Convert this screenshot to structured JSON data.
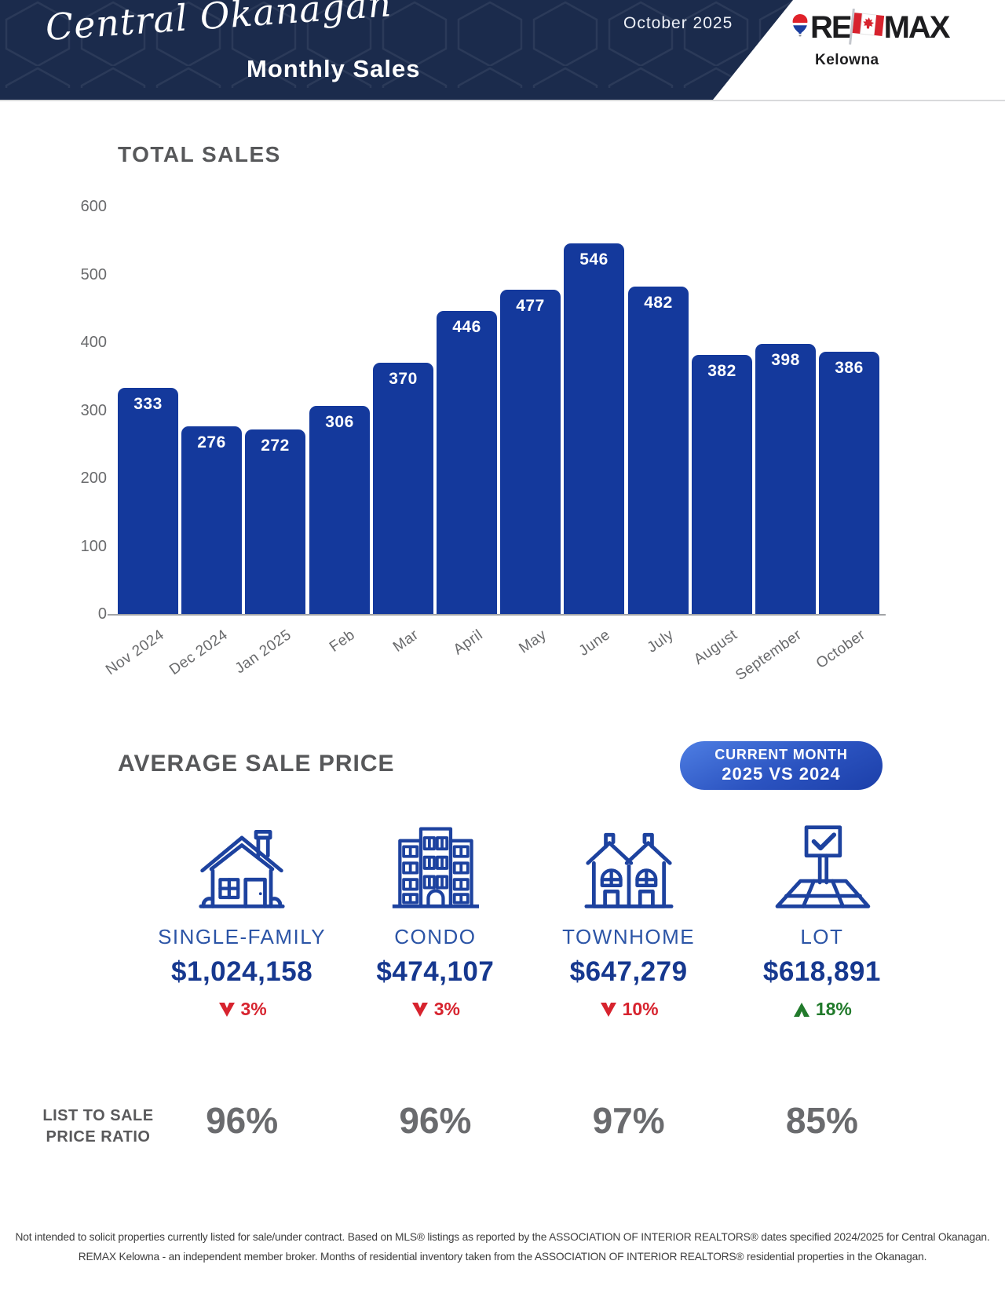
{
  "header": {
    "region": "Central Okanagan",
    "title": "Monthly Sales",
    "date": "October 2025",
    "logo": {
      "brand_left": "RE",
      "brand_right": "MAX",
      "office": "Kelowna"
    }
  },
  "chart_data": {
    "type": "bar",
    "title": "TOTAL SALES",
    "categories": [
      "Nov 2024",
      "Dec 2024",
      "Jan 2025",
      "Feb",
      "Mar",
      "April",
      "May",
      "June",
      "July",
      "August",
      "September",
      "October"
    ],
    "values": [
      333,
      276,
      272,
      306,
      370,
      446,
      477,
      546,
      482,
      382,
      398,
      386
    ],
    "xlabel": "",
    "ylabel": "",
    "ylim": [
      0,
      600
    ],
    "yticks": [
      0,
      100,
      200,
      300,
      400,
      500,
      600
    ],
    "grid": false,
    "legend": false,
    "bar_color": "#14399C",
    "value_label_position": "inside-top"
  },
  "average_sale_price": {
    "heading": "AVERAGE SALE PRICE",
    "badge": {
      "line1": "CURRENT MONTH",
      "line2": "2025 VS 2024"
    },
    "categories": [
      {
        "icon": "single-family-house-icon",
        "label": "SINGLE-FAMILY",
        "price": "$1,024,158",
        "change": "3%",
        "direction": "down"
      },
      {
        "icon": "condo-building-icon",
        "label": "CONDO",
        "price": "$474,107",
        "change": "3%",
        "direction": "down"
      },
      {
        "icon": "townhome-icon",
        "label": "TOWNHOME",
        "price": "$647,279",
        "change": "10%",
        "direction": "down"
      },
      {
        "icon": "lot-sign-icon",
        "label": "LOT",
        "price": "$618,891",
        "change": "18%",
        "direction": "up"
      }
    ]
  },
  "list_to_sale_price_ratio": {
    "label_line1": "LIST TO SALE",
    "label_line2": "PRICE RATIO",
    "values": [
      "96%",
      "96%",
      "97%",
      "85%"
    ]
  },
  "footer": {
    "line1": "Not intended to solicit properties currently listed for sale/under contract. Based on MLS® listings as reported by the ASSOCIATION OF INTERIOR REALTORS® dates specified 2024/2025 for Central Okanagan.",
    "line2": "REMAX Kelowna - an independent member broker. Months of residential inventory taken from the ASSOCIATION OF INTERIOR REALTORS® residential properties in the Okanagan."
  },
  "colors": {
    "navy_header": "#1B2B4C",
    "bar_blue": "#14399C",
    "icon_blue": "#1D429F",
    "label_blue": "#2B54A6",
    "price_blue": "#16388F",
    "heading_gray": "#57585A",
    "tick_gray": "#6A6B6D",
    "ratio_gray": "#6B6C6E",
    "down_red": "#D7232E",
    "up_green": "#217A2B",
    "badge_blue_start": "#4E7EE3",
    "badge_blue_end": "#1C3FA9"
  }
}
